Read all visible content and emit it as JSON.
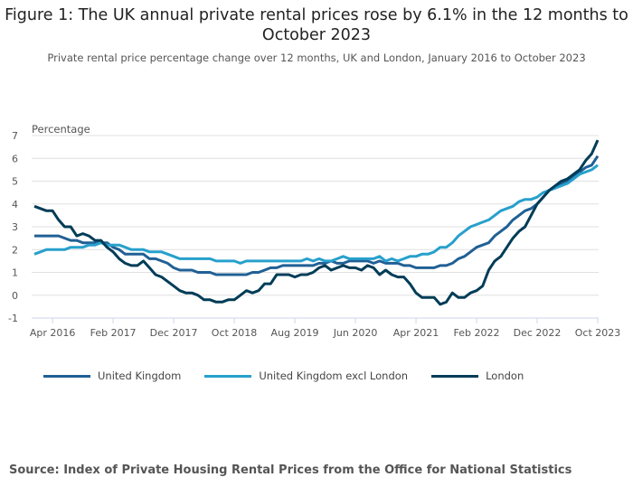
{
  "title": "Figure 1: The UK annual private rental prices rose by 6.1% in the 12 months to October 2023",
  "subtitle": "Private rental price percentage change over 12 months, UK and London, January 2016 to October 2023",
  "source": "Source: Index of Private Housing Rental Prices from the Office for National Statistics",
  "chart_data": {
    "type": "line",
    "title": "Figure 1: The UK annual private rental prices rose by 6.1% in the 12 months to October 2023",
    "ylabel": "Percentage",
    "ylim": [
      -1,
      7
    ],
    "yticks": [
      -1,
      0,
      1,
      2,
      3,
      4,
      5,
      6,
      7
    ],
    "x_start": "Jan 2016",
    "x_end": "Oct 2023",
    "x_frequency": "monthly",
    "xtick_labels": [
      "Apr 2016",
      "Feb 2017",
      "Dec 2017",
      "Oct 2018",
      "Aug 2019",
      "Jun 2020",
      "Apr 2021",
      "Feb 2022",
      "Dec 2022",
      "Oct 2023"
    ],
    "grid": "horizontal",
    "legend_position": "bottom",
    "series": [
      {
        "name": "United Kingdom",
        "color": "#206095",
        "values": [
          2.6,
          2.6,
          2.6,
          2.6,
          2.6,
          2.5,
          2.4,
          2.4,
          2.3,
          2.3,
          2.3,
          2.3,
          2.3,
          2.1,
          2.0,
          1.8,
          1.8,
          1.8,
          1.8,
          1.6,
          1.6,
          1.5,
          1.4,
          1.2,
          1.1,
          1.1,
          1.1,
          1.0,
          1.0,
          1.0,
          0.9,
          0.9,
          0.9,
          0.9,
          0.9,
          0.9,
          1.0,
          1.0,
          1.1,
          1.2,
          1.2,
          1.3,
          1.3,
          1.3,
          1.3,
          1.3,
          1.3,
          1.4,
          1.4,
          1.5,
          1.4,
          1.4,
          1.5,
          1.5,
          1.5,
          1.5,
          1.4,
          1.5,
          1.4,
          1.4,
          1.4,
          1.3,
          1.3,
          1.2,
          1.2,
          1.2,
          1.2,
          1.3,
          1.3,
          1.4,
          1.6,
          1.7,
          1.9,
          2.1,
          2.2,
          2.3,
          2.6,
          2.8,
          3.0,
          3.3,
          3.5,
          3.7,
          3.8,
          4.0,
          4.3,
          4.6,
          4.7,
          4.9,
          5.0,
          5.2,
          5.4,
          5.6,
          5.7,
          6.1
        ]
      },
      {
        "name": "United Kingdom excl London",
        "color": "#27a0cc",
        "values": [
          1.8,
          1.9,
          2.0,
          2.0,
          2.0,
          2.0,
          2.1,
          2.1,
          2.1,
          2.2,
          2.2,
          2.3,
          2.2,
          2.2,
          2.2,
          2.1,
          2.0,
          2.0,
          2.0,
          1.9,
          1.9,
          1.9,
          1.8,
          1.7,
          1.6,
          1.6,
          1.6,
          1.6,
          1.6,
          1.6,
          1.5,
          1.5,
          1.5,
          1.5,
          1.4,
          1.5,
          1.5,
          1.5,
          1.5,
          1.5,
          1.5,
          1.5,
          1.5,
          1.5,
          1.5,
          1.6,
          1.5,
          1.6,
          1.5,
          1.5,
          1.6,
          1.7,
          1.6,
          1.6,
          1.6,
          1.6,
          1.6,
          1.7,
          1.5,
          1.6,
          1.5,
          1.6,
          1.7,
          1.7,
          1.8,
          1.8,
          1.9,
          2.1,
          2.1,
          2.3,
          2.6,
          2.8,
          3.0,
          3.1,
          3.2,
          3.3,
          3.5,
          3.7,
          3.8,
          3.9,
          4.1,
          4.2,
          4.2,
          4.3,
          4.5,
          4.6,
          4.7,
          4.8,
          4.9,
          5.1,
          5.3,
          5.4,
          5.5,
          5.7
        ]
      },
      {
        "name": "London",
        "color": "#003c57",
        "values": [
          3.9,
          3.8,
          3.7,
          3.7,
          3.3,
          3.0,
          3.0,
          2.6,
          2.7,
          2.6,
          2.4,
          2.4,
          2.1,
          1.9,
          1.6,
          1.4,
          1.3,
          1.3,
          1.5,
          1.2,
          0.9,
          0.8,
          0.6,
          0.4,
          0.2,
          0.1,
          0.1,
          0.0,
          -0.2,
          -0.2,
          -0.3,
          -0.3,
          -0.2,
          -0.2,
          0.0,
          0.2,
          0.1,
          0.2,
          0.5,
          0.5,
          0.9,
          0.9,
          0.9,
          0.8,
          0.9,
          0.9,
          1.0,
          1.2,
          1.3,
          1.1,
          1.2,
          1.3,
          1.2,
          1.2,
          1.1,
          1.3,
          1.2,
          0.9,
          1.1,
          0.9,
          0.8,
          0.8,
          0.5,
          0.1,
          -0.1,
          -0.1,
          -0.1,
          -0.4,
          -0.3,
          0.1,
          -0.1,
          -0.1,
          0.1,
          0.2,
          0.4,
          1.1,
          1.5,
          1.7,
          2.1,
          2.5,
          2.8,
          3.0,
          3.5,
          4.0,
          4.3,
          4.6,
          4.8,
          5.0,
          5.1,
          5.3,
          5.5,
          5.9,
          6.2,
          6.8
        ]
      }
    ]
  }
}
